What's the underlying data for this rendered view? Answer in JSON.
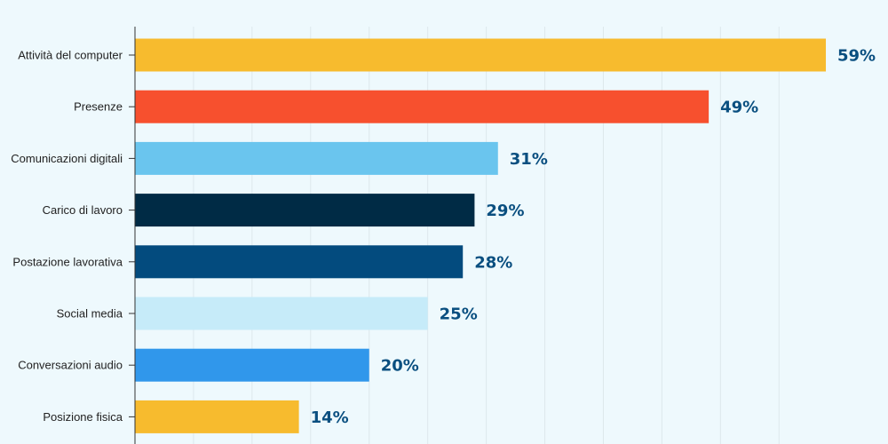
{
  "chart_data": {
    "type": "bar",
    "orientation": "horizontal",
    "categories": [
      "Attività del computer",
      "Presenze",
      "Comunicazioni digitali",
      "Carico di lavoro",
      "Postazione lavorativa",
      "Social media",
      "Conversazioni audio",
      "Posizione fisica"
    ],
    "values": [
      59,
      49,
      31,
      29,
      28,
      25,
      20,
      14
    ],
    "value_labels": [
      "59%",
      "49%",
      "31%",
      "29%",
      "28%",
      "25%",
      "20%",
      "14%"
    ],
    "bar_colors": [
      "#F7BB2E",
      "#F7502E",
      "#6AC5EE",
      "#002B45",
      "#034B7E",
      "#C6EBF9",
      "#3097EB",
      "#F7BB2E"
    ],
    "xlim": [
      0,
      59
    ],
    "grid": true,
    "grid_step": 5,
    "legend": "none",
    "title": "",
    "xlabel": "",
    "ylabel": ""
  },
  "colors": {
    "background": "#EEF9FD",
    "grid": "#DDE8EC",
    "axis": "#333333",
    "value_text": "#0A4F80",
    "category_text": "#222222"
  }
}
